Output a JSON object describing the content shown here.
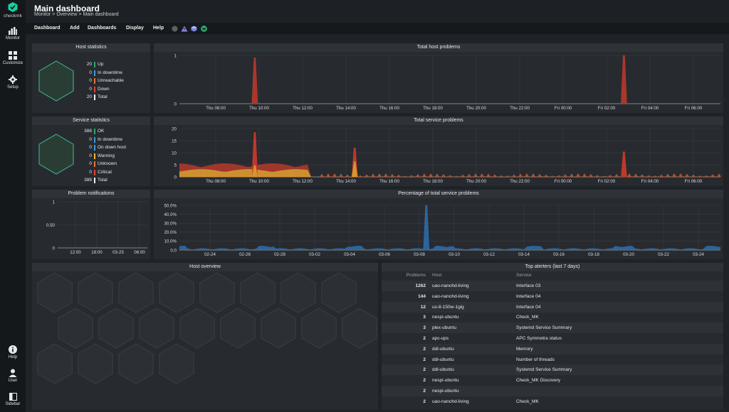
{
  "sidebar": {
    "logo_text": "checkmk",
    "items": [
      {
        "label": "Monitor",
        "icon": "bar-chart-icon"
      },
      {
        "label": "Customize",
        "icon": "grid-icon"
      },
      {
        "label": "Setup",
        "icon": "gear-icon"
      }
    ],
    "bottom_items": [
      {
        "label": "Help",
        "icon": "info-icon"
      },
      {
        "label": "User",
        "icon": "user-icon"
      },
      {
        "label": "Sidebar",
        "icon": "sidebar-toggle-icon"
      }
    ]
  },
  "header": {
    "title": "Main dashboard",
    "breadcrumb": "Monitor > Overview > Main dashboard"
  },
  "menu": {
    "items": [
      "Dashboard",
      "Add",
      "Dashboards",
      "Display",
      "Help"
    ],
    "icons": [
      "circle-icon",
      "warning-triangle-icon",
      "cube-icon",
      "list-icon"
    ]
  },
  "host_statistics": {
    "title": "Host statistics",
    "rows": [
      {
        "value": "20",
        "label": "Up",
        "color": "#2ea46b"
      },
      {
        "value": "0",
        "label": "In downtime",
        "color": "#3d9bd8"
      },
      {
        "value": "0",
        "label": "Unreachable",
        "color": "#e8742d"
      },
      {
        "value": "0",
        "label": "Down",
        "color": "#e0433a"
      },
      {
        "value": "20",
        "label": "Total",
        "color": "#f0f0f0"
      }
    ]
  },
  "service_statistics": {
    "title": "Service statistics",
    "rows": [
      {
        "value": "388",
        "label": "OK",
        "color": "#2ea46b"
      },
      {
        "value": "0",
        "label": "In downtime",
        "color": "#3d9bd8"
      },
      {
        "value": "0",
        "label": "On down host",
        "color": "#3d9bd8"
      },
      {
        "value": "0",
        "label": "Warning",
        "color": "#f0b830"
      },
      {
        "value": "0",
        "label": "Unknown",
        "color": "#e8742d"
      },
      {
        "value": "0",
        "label": "Critical",
        "color": "#e0433a"
      },
      {
        "value": "388",
        "label": "Total",
        "color": "#f0f0f0"
      }
    ]
  },
  "chart_data": [
    {
      "type": "area",
      "title": "Total host problems",
      "x": [
        "Thu 08:00",
        "Thu 10:00",
        "Thu 12:00",
        "Thu 14:00",
        "Thu 16:00",
        "Thu 18:00",
        "Thu 20:00",
        "Thu 22:00",
        "Fri 00:00",
        "Fri 02:00",
        "Fri 04:00",
        "Fri 06:00"
      ],
      "yticks": [
        "1",
        "0"
      ],
      "ylim": [
        0,
        1
      ],
      "series": [
        {
          "color": "#c0392b",
          "spikes": [
            {
              "x": 0.9,
              "y": 0.95
            },
            {
              "x": 9.4,
              "y": 1.0
            }
          ]
        }
      ]
    },
    {
      "type": "area",
      "title": "Total service problems",
      "x": [
        "Thu 08:00",
        "Thu 10:00",
        "Thu 12:00",
        "Thu 14:00",
        "Thu 16:00",
        "Thu 18:00",
        "Thu 20:00",
        "Thu 22:00",
        "Fri 00:00",
        "Fri 02:00",
        "Fri 04:00",
        "Fri 06:00"
      ],
      "yticks": [
        "20",
        "15",
        "10",
        "5",
        "0"
      ],
      "ylim": [
        0,
        25
      ],
      "series": [
        {
          "color": "#c0392b",
          "spikes": [
            {
              "x": 0.9,
              "y": 23
            },
            {
              "x": 3.2,
              "y": 15
            },
            {
              "x": 9.4,
              "y": 13
            }
          ]
        },
        {
          "color": "#d6a030",
          "spikes": [
            {
              "x": 0.9,
              "y": 6
            },
            {
              "x": 3.2,
              "y": 8
            }
          ]
        }
      ]
    },
    {
      "type": "line",
      "title": "Problem notifications",
      "x": [
        "12:00",
        "18:00",
        "03-25",
        "06:00"
      ],
      "yticks": [
        "1",
        "0.50",
        "0"
      ],
      "ylim": [
        0,
        1
      ],
      "series": []
    },
    {
      "type": "area",
      "title": "Percentage of total service problems",
      "x": [
        "02-24",
        "02-26",
        "02-28",
        "03-02",
        "03-04",
        "03-06",
        "03-08",
        "03-10",
        "03-12",
        "03-14",
        "03-16",
        "03-18",
        "03-20",
        "03-22",
        "03-24"
      ],
      "yticks": [
        "50.0%",
        "40.0%",
        "30.0%",
        "20.0%",
        "10.0%",
        "0.0"
      ],
      "ylim": [
        0,
        55
      ],
      "series": [
        {
          "color": "#2d6fb0",
          "spikes": [
            {
              "x": 6.2,
              "y": 55
            }
          ]
        }
      ]
    }
  ],
  "host_overview": {
    "title": "Host overview",
    "host_count": 20
  },
  "top_alerters": {
    "title": "Top alerters (last 7 days)",
    "columns": [
      "Problems",
      "Host",
      "Service"
    ],
    "rows": [
      {
        "problems": "1262",
        "host": "uao-nanohd-living",
        "service": "Interface 03"
      },
      {
        "problems": "144",
        "host": "uao-nanohd-living",
        "service": "Interface 04"
      },
      {
        "problems": "12",
        "host": "us-8-150w-1gig",
        "service": "Interface 04"
      },
      {
        "problems": "3",
        "host": "nespi-ubuntu",
        "service": "Check_MK"
      },
      {
        "problems": "3",
        "host": "plex-ubuntu",
        "service": "Systemd Service Summary"
      },
      {
        "problems": "2",
        "host": "apc-ups",
        "service": "APC Symmetra status"
      },
      {
        "problems": "2",
        "host": "ddl-ubuntu",
        "service": "Memory"
      },
      {
        "problems": "2",
        "host": "ddl-ubuntu",
        "service": "Number of threads"
      },
      {
        "problems": "2",
        "host": "ddl-ubuntu",
        "service": "Systemd Service Summary"
      },
      {
        "problems": "2",
        "host": "nespi-ubuntu",
        "service": "Check_MK Discovery"
      },
      {
        "problems": "2",
        "host": "nespi-ubuntu",
        "service": ""
      },
      {
        "problems": "2",
        "host": "uao-nanohd-living",
        "service": "Check_MK"
      }
    ]
  }
}
